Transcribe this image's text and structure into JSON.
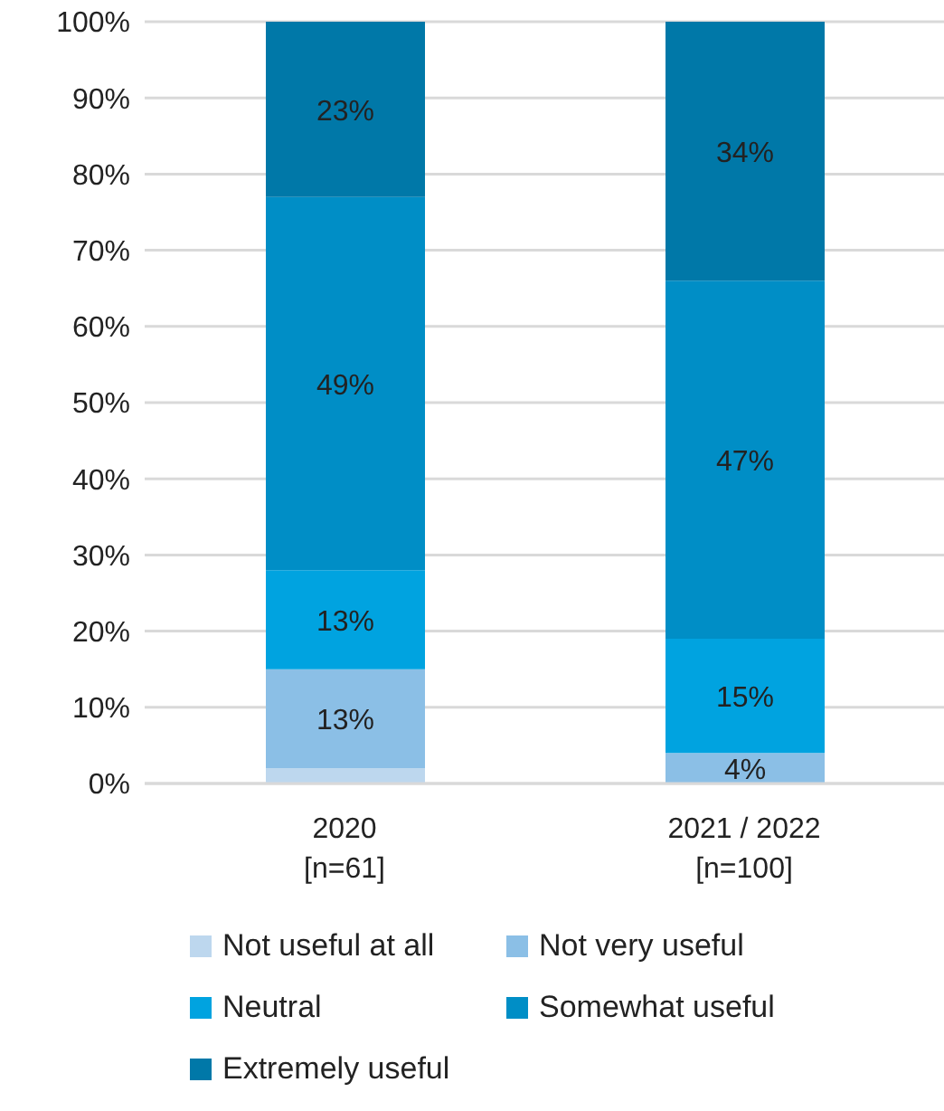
{
  "chart_data": {
    "type": "bar",
    "stacked": true,
    "categories": [
      "2020\n[n=61]",
      "2021 / 2022\n[n=100]"
    ],
    "series": [
      {
        "name": "Not useful at all",
        "color": "#bdd7ee",
        "values": [
          2,
          0
        ],
        "value_labels": [
          null,
          null
        ]
      },
      {
        "name": "Not very useful",
        "color": "#8bbfe6",
        "values": [
          13,
          4
        ],
        "value_labels": [
          "13%",
          "4%"
        ]
      },
      {
        "name": "Neutral",
        "color": "#00a3e0",
        "values": [
          13,
          15
        ],
        "value_labels": [
          "13%",
          "15%"
        ]
      },
      {
        "name": "Somewhat useful",
        "color": "#008ec6",
        "values": [
          49,
          47
        ],
        "value_labels": [
          "49%",
          "47%"
        ]
      },
      {
        "name": "Extremely useful",
        "color": "#0078a8",
        "values": [
          23,
          34
        ],
        "value_labels": [
          "23%",
          "34%"
        ]
      }
    ],
    "ylim": [
      0,
      100
    ],
    "yticks": [
      {
        "value": 0,
        "label": "0%"
      },
      {
        "value": 10,
        "label": "10%"
      },
      {
        "value": 20,
        "label": "20%"
      },
      {
        "value": 30,
        "label": "30%"
      },
      {
        "value": 40,
        "label": "40%"
      },
      {
        "value": 50,
        "label": "50%"
      },
      {
        "value": 60,
        "label": "60%"
      },
      {
        "value": 70,
        "label": "70%"
      },
      {
        "value": 80,
        "label": "80%"
      },
      {
        "value": 90,
        "label": "90%"
      },
      {
        "value": 100,
        "label": "100%"
      }
    ],
    "grid": "y",
    "legend": "bottom"
  }
}
